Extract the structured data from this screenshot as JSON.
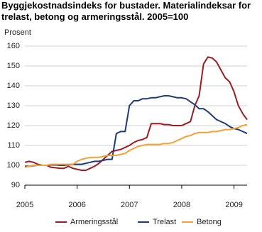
{
  "chart_data": {
    "type": "line",
    "title": "Byggjekostnadsindeks for bustader. Materialindeksar for trelast, betong og armeringsstål. 2005=100",
    "y_label": "Prosent",
    "x": [
      2005,
      2005.083,
      2005.167,
      2005.25,
      2005.333,
      2005.417,
      2005.5,
      2005.583,
      2005.667,
      2005.75,
      2005.833,
      2005.917,
      2006,
      2006.083,
      2006.167,
      2006.25,
      2006.333,
      2006.417,
      2006.5,
      2006.583,
      2006.667,
      2006.75,
      2006.833,
      2006.917,
      2007,
      2007.083,
      2007.167,
      2007.25,
      2007.333,
      2007.417,
      2007.5,
      2007.583,
      2007.667,
      2007.75,
      2007.833,
      2007.917,
      2008,
      2008.083,
      2008.167,
      2008.25,
      2008.333,
      2008.417,
      2008.5,
      2008.583,
      2008.667,
      2008.75,
      2008.833,
      2008.917,
      2009,
      2009.083,
      2009.167,
      2009.25
    ],
    "series": [
      {
        "name": "Armeringsstål",
        "color": "#9b1c23",
        "values": [
          101.5,
          102,
          101.5,
          100.5,
          100,
          100,
          99,
          98.8,
          98.5,
          98.5,
          99.5,
          98.5,
          98,
          97.5,
          97.5,
          98.5,
          99.5,
          101,
          103,
          105,
          107,
          107.5,
          108,
          109,
          110,
          111.5,
          112.5,
          113,
          114,
          121,
          121,
          121,
          120.5,
          120.5,
          120,
          120,
          120,
          121,
          122,
          130,
          135,
          151,
          154.5,
          154,
          152,
          148,
          144,
          142,
          137,
          130,
          126,
          123
        ]
      },
      {
        "name": "Trelast",
        "color": "#1f3a78",
        "values": [
          99.5,
          99.5,
          99.8,
          100,
          100,
          100,
          100.2,
          100.2,
          100,
          100,
          100.3,
          100.5,
          100.5,
          100.5,
          101,
          101.5,
          102,
          102,
          102.5,
          103,
          103,
          116,
          117,
          117,
          130,
          132.5,
          132.5,
          133.5,
          133.5,
          134,
          134,
          134.5,
          135,
          135,
          134.5,
          134,
          134,
          133.5,
          132,
          130.5,
          128.5,
          128.5,
          127,
          125,
          123,
          122,
          121,
          119.5,
          118.5,
          118,
          117,
          116
        ]
      },
      {
        "name": "Betong",
        "color": "#f5a033",
        "values": [
          99,
          99.5,
          100,
          100,
          100,
          100,
          100.5,
          100.5,
          100.5,
          100.5,
          100.5,
          100.5,
          102,
          103,
          103.5,
          104,
          104,
          104,
          104.5,
          105,
          105,
          105,
          105.5,
          106,
          107.5,
          108.5,
          109.5,
          110,
          110.5,
          110.5,
          110.5,
          110.5,
          111,
          111,
          111.5,
          112.5,
          113.5,
          114.5,
          115,
          116,
          116.5,
          116.5,
          116.5,
          117,
          117,
          117.5,
          118,
          118,
          118.5,
          119,
          120,
          120.5
        ]
      }
    ],
    "xlim": [
      2005,
      2009.25
    ],
    "xticks": [
      2005,
      2006,
      2007,
      2008,
      2009
    ],
    "ylim": [
      90,
      160
    ],
    "yticks": [
      90,
      100,
      110,
      120,
      130,
      140,
      150,
      160
    ],
    "grid": true,
    "legend": "bottom"
  }
}
